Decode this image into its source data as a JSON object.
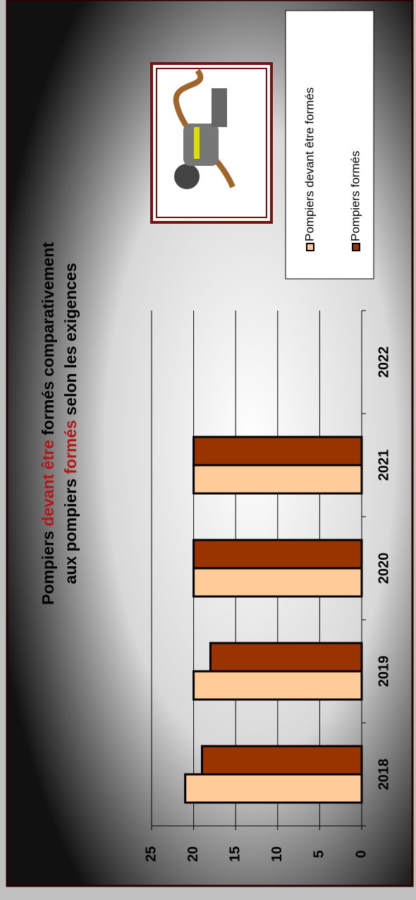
{
  "chart_data": {
    "type": "bar",
    "title_lines": [
      [
        "Pompiers ",
        "devant être",
        " formés comparativement"
      ],
      [
        "aux pompiers ",
        "formés",
        " selon les exigences"
      ]
    ],
    "categories": [
      "2018",
      "2019",
      "2020",
      "2021",
      "2022"
    ],
    "series": [
      {
        "name": "Pompiers devant être formés",
        "color": "#ffcc99",
        "values": [
          21,
          20,
          20,
          20,
          null
        ]
      },
      {
        "name": "Pompiers formés",
        "color": "#993300",
        "values": [
          19,
          18,
          20,
          20,
          null
        ]
      }
    ],
    "ylim": [
      0,
      25
    ],
    "yticks": [
      0,
      5,
      10,
      15,
      20,
      25
    ],
    "grid": true
  }
}
